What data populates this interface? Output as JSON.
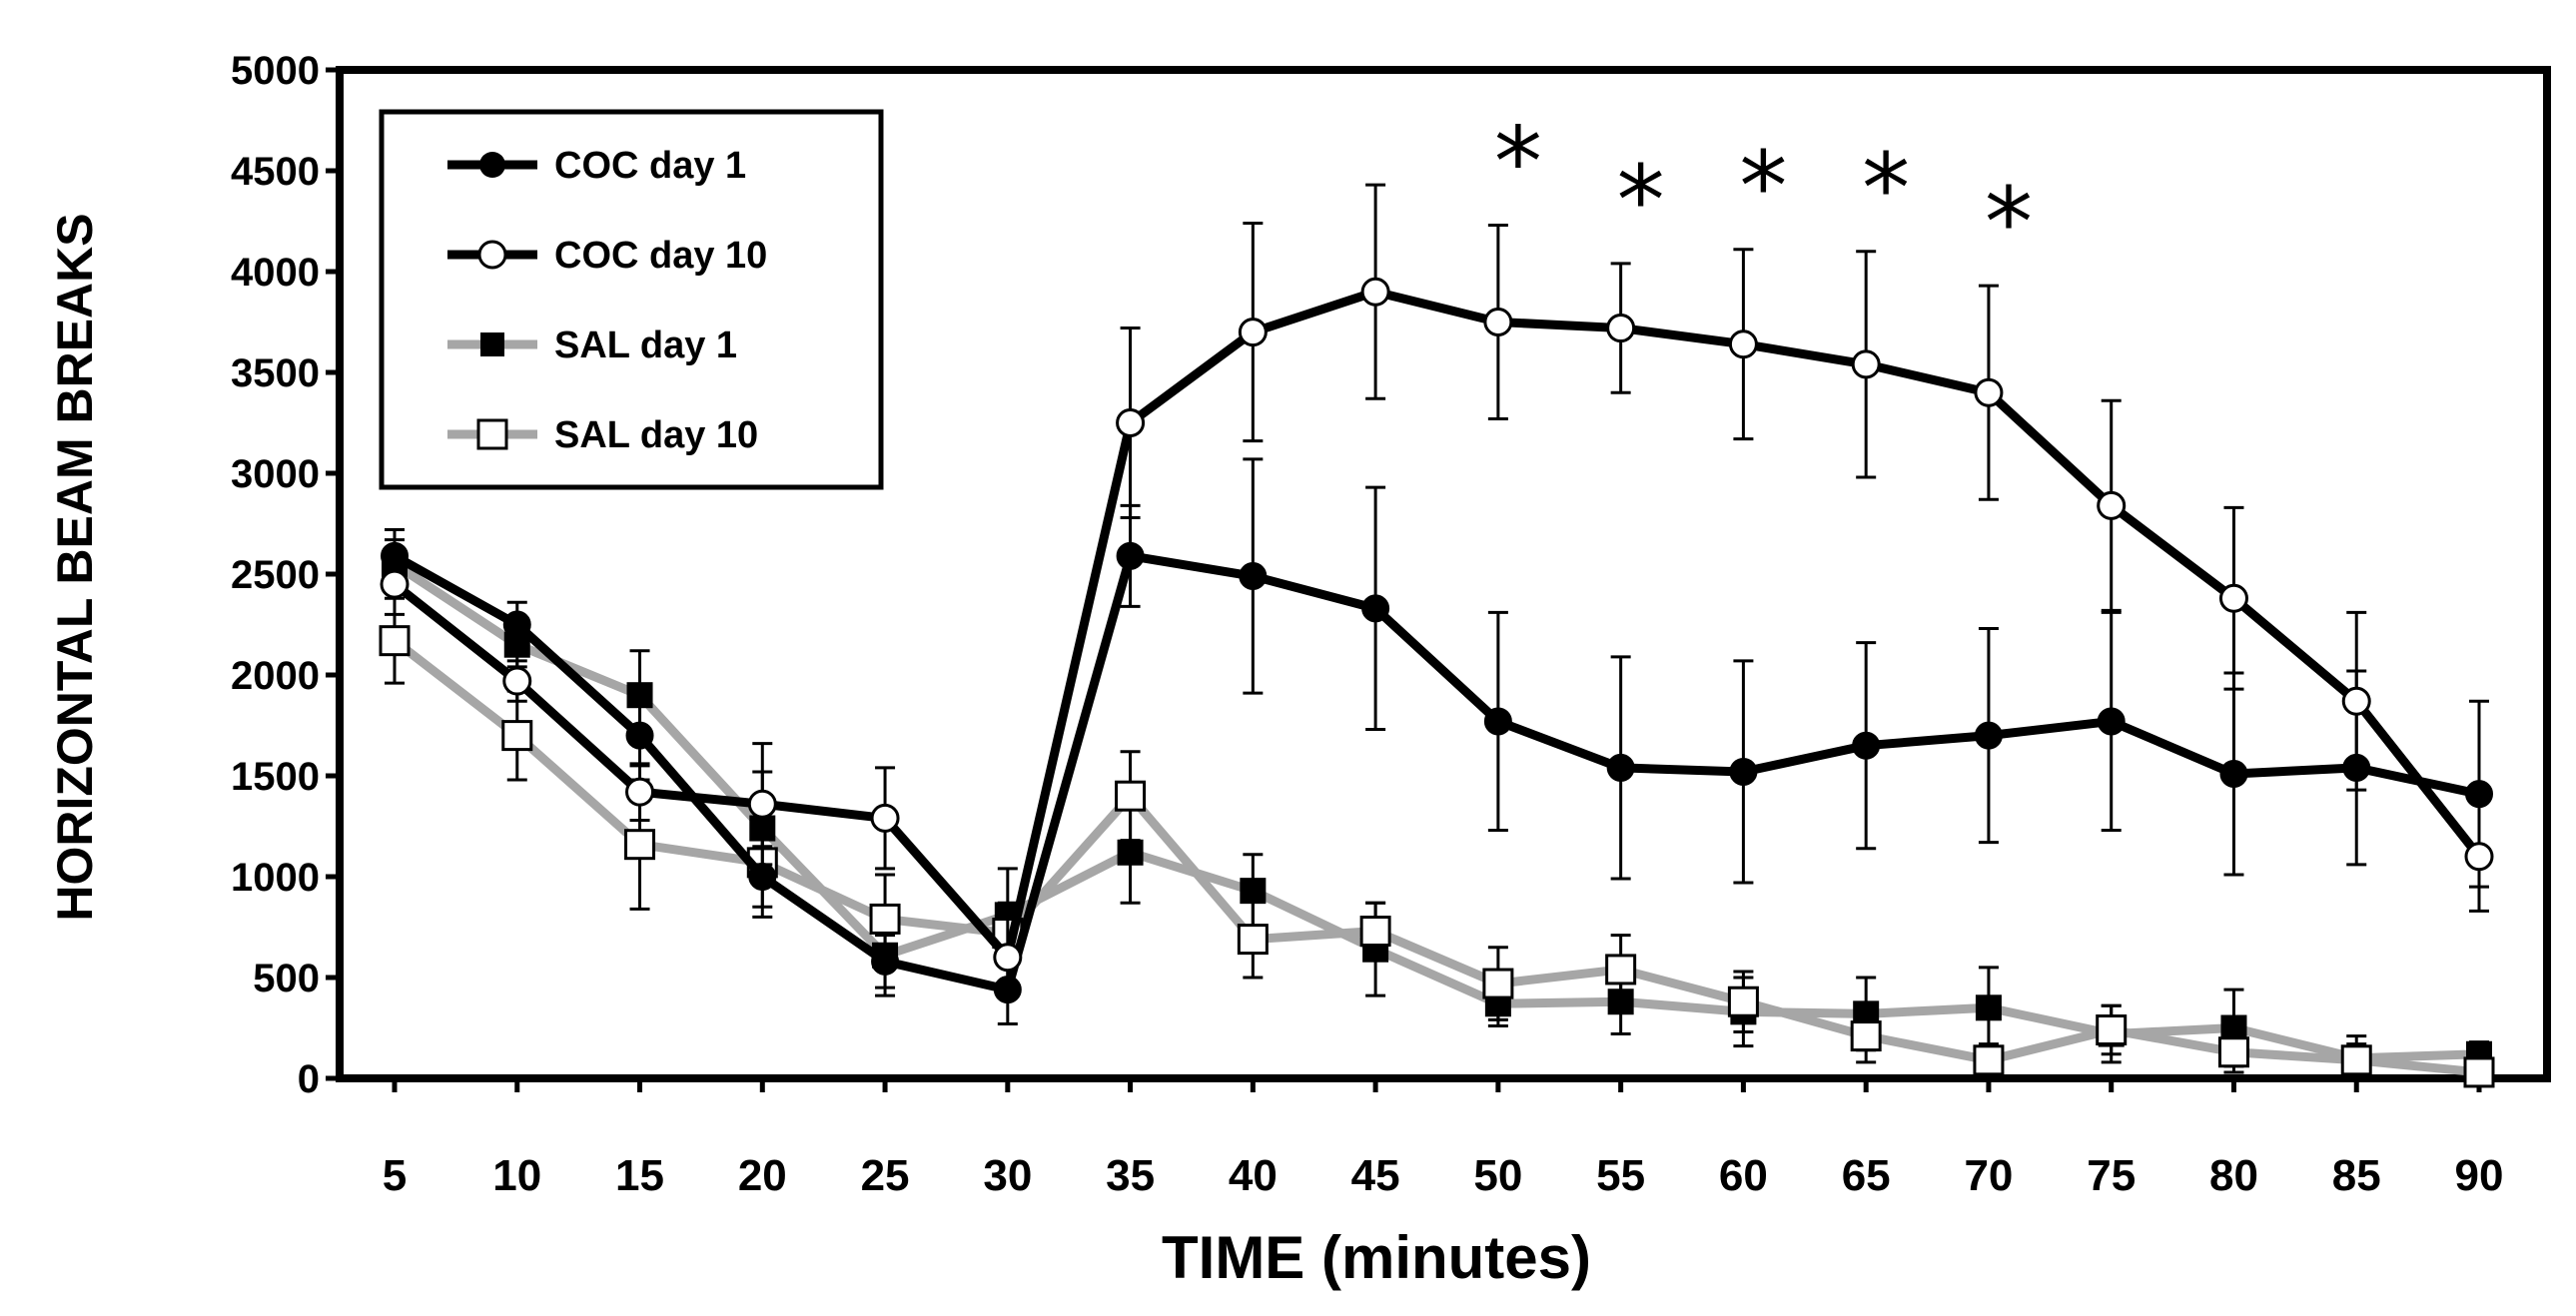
{
  "chart_data": {
    "type": "line",
    "xlabel": "TIME (minutes)",
    "ylabel": "HORIZONTAL BEAM BREAKS",
    "x": [
      5,
      10,
      15,
      20,
      25,
      30,
      35,
      40,
      45,
      50,
      55,
      60,
      65,
      70,
      75,
      80,
      85,
      90
    ],
    "xlim": [
      5,
      90
    ],
    "ylim": [
      0,
      5000
    ],
    "yticks": [
      0,
      500,
      1000,
      1500,
      2000,
      2500,
      3000,
      3500,
      4000,
      4500,
      5000
    ],
    "grid": false,
    "legend_position": "top-left",
    "significance_marker": "*",
    "significant_x": [
      50,
      55,
      60,
      65,
      70
    ],
    "series": [
      {
        "name": "COC day 1",
        "color": "#000000",
        "marker": "filled-circle",
        "values": [
          2590,
          2250,
          1700,
          1000,
          580,
          440,
          2590,
          2490,
          2330,
          1770,
          1540,
          1520,
          1650,
          1700,
          1770,
          1510,
          1540,
          1410
        ],
        "errors": [
          130,
          110,
          150,
          150,
          130,
          170,
          250,
          580,
          600,
          540,
          550,
          550,
          510,
          530,
          540,
          500,
          480,
          460
        ]
      },
      {
        "name": "COC day 10",
        "color": "#000000",
        "marker": "open-circle",
        "values": [
          2450,
          1970,
          1420,
          1360,
          1290,
          600,
          3250,
          3700,
          3900,
          3750,
          3720,
          3640,
          3540,
          3400,
          2840,
          2380,
          1870,
          1100
        ],
        "errors": [
          150,
          100,
          140,
          300,
          250,
          200,
          470,
          540,
          530,
          480,
          320,
          470,
          560,
          530,
          520,
          450,
          440,
          270
        ]
      },
      {
        "name": "SAL day 1",
        "color": "#a6a6a6",
        "marker": "filled-square",
        "values": [
          2550,
          2150,
          1900,
          1240,
          610,
          810,
          1120,
          930,
          640,
          370,
          380,
          330,
          320,
          350,
          220,
          250,
          100,
          120
        ],
        "errors": [
          120,
          110,
          220,
          280,
          200,
          230,
          250,
          180,
          230,
          110,
          160,
          170,
          180,
          200,
          140,
          190,
          110,
          60
        ]
      },
      {
        "name": "SAL day 10",
        "color": "#a6a6a6",
        "marker": "open-square",
        "values": [
          2170,
          1700,
          1160,
          1070,
          790,
          720,
          1400,
          690,
          730,
          470,
          540,
          380,
          210,
          90,
          240,
          130,
          90,
          30
        ],
        "errors": [
          210,
          220,
          320,
          270,
          220,
          150,
          220,
          190,
          140,
          180,
          170,
          150,
          130,
          80,
          120,
          100,
          80,
          60
        ]
      }
    ]
  }
}
